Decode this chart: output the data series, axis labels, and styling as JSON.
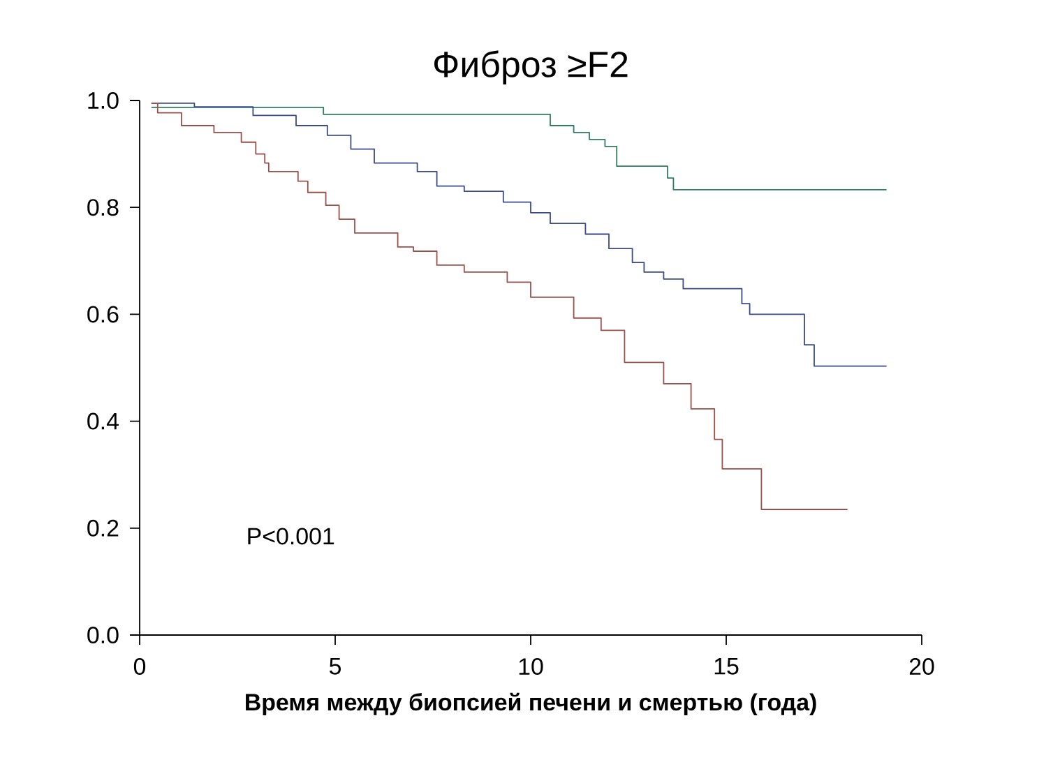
{
  "chart_data": {
    "type": "step",
    "title": "Фиброз ≥F2",
    "xlabel": "Время между биопсией печени и смертью (года)",
    "xlim": [
      0,
      20
    ],
    "xticks": [
      0,
      5,
      10,
      15,
      20
    ],
    "ylim": [
      0,
      1
    ],
    "yticks": [
      {
        "value": 0,
        "label": "0.0"
      },
      {
        "value": 0.2,
        "label": "0.2"
      },
      {
        "value": 0.4,
        "label": "0.4"
      },
      {
        "value": 0.6,
        "label": "0.6"
      },
      {
        "value": 0.8,
        "label": "0.8"
      },
      {
        "value": 1,
        "label": "1.0"
      }
    ],
    "line_style": "solid",
    "annotations": [
      "P<0.001"
    ],
    "series": [
      {
        "color": "#2f7f5f",
        "x": [
          0.3,
          4.7,
          10.5,
          11.1,
          11.5,
          11.9,
          12.2,
          13.5,
          13.65,
          19.1
        ],
        "values": [
          0.987,
          0.974,
          0.953,
          0.94,
          0.927,
          0.914,
          0.877,
          0.855,
          0.833,
          0.833
        ]
      },
      {
        "color": "#3a4a8a",
        "x": [
          0.3,
          1.4,
          2.9,
          4.0,
          4.8,
          5.4,
          6.0,
          7.1,
          7.6,
          8.3,
          9.3,
          10.0,
          10.5,
          11.4,
          12.0,
          12.6,
          12.9,
          13.4,
          13.9,
          15.4,
          15.6,
          17.0,
          17.25,
          19.1
        ],
        "values": [
          0.995,
          0.988,
          0.972,
          0.953,
          0.935,
          0.909,
          0.883,
          0.867,
          0.84,
          0.83,
          0.81,
          0.79,
          0.77,
          0.75,
          0.723,
          0.697,
          0.679,
          0.666,
          0.648,
          0.62,
          0.6,
          0.543,
          0.503,
          0.503
        ]
      },
      {
        "color": "#9a5048",
        "x": [
          0.3,
          0.46,
          1.07,
          1.9,
          2.6,
          2.97,
          3.2,
          3.3,
          4.05,
          4.3,
          4.76,
          5.1,
          5.5,
          6.6,
          7.0,
          7.6,
          8.3,
          9.4,
          10.0,
          11.1,
          11.8,
          12.4,
          13.4,
          14.1,
          14.7,
          14.9,
          15.9,
          18.1
        ],
        "values": [
          0.995,
          0.977,
          0.953,
          0.94,
          0.922,
          0.9,
          0.883,
          0.867,
          0.849,
          0.828,
          0.804,
          0.778,
          0.752,
          0.726,
          0.718,
          0.692,
          0.679,
          0.66,
          0.632,
          0.593,
          0.57,
          0.51,
          0.47,
          0.423,
          0.366,
          0.311,
          0.235,
          0.235
        ]
      }
    ]
  }
}
